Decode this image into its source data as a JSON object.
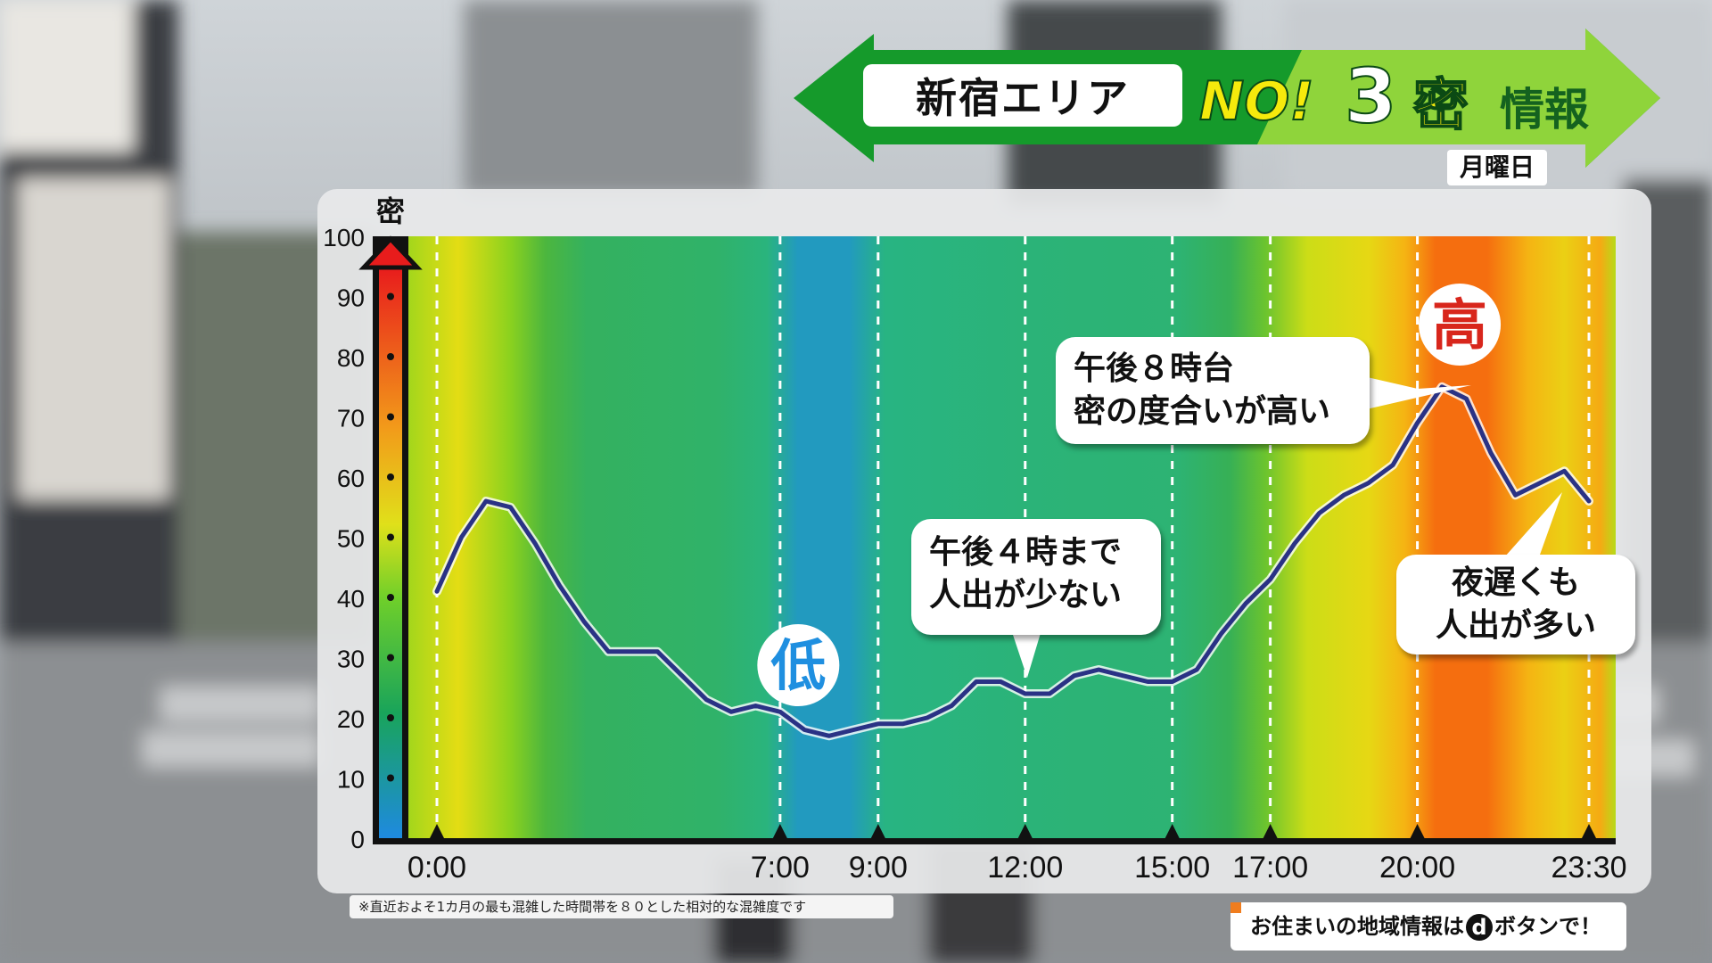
{
  "header": {
    "area": "新宿エリア",
    "brand_no": "NO!",
    "brand_three": "3",
    "brand_mitsu": "密",
    "brand_joho": "情報",
    "weekday": "月曜日"
  },
  "colors": {
    "banner_green": "#159a2b",
    "banner_light": "#8fd43b",
    "line": "#2a3285",
    "high_label": "#d8261c",
    "low_label": "#1f8fe0"
  },
  "chart_data": {
    "type": "line",
    "ylabel": "密",
    "ylim": [
      0,
      100
    ],
    "yticks": [
      "0",
      "10",
      "20",
      "30",
      "40",
      "50",
      "60",
      "70",
      "80",
      "90",
      "100"
    ],
    "xlim": [
      0,
      23.5
    ],
    "xtick_labels": [
      {
        "x": 0,
        "label": "0:00"
      },
      {
        "x": 7,
        "label": "7:00"
      },
      {
        "x": 9,
        "label": "9:00"
      },
      {
        "x": 12,
        "label": "12:00"
      },
      {
        "x": 15,
        "label": "15:00"
      },
      {
        "x": 17,
        "label": "17:00"
      },
      {
        "x": 20,
        "label": "20:00"
      },
      {
        "x": 23.5,
        "label": "23:30"
      }
    ],
    "x": [
      0,
      0.5,
      1,
      1.5,
      2,
      2.5,
      3,
      3.5,
      4,
      4.5,
      5,
      5.5,
      6,
      6.5,
      7,
      7.5,
      8,
      8.5,
      9,
      9.5,
      10,
      10.5,
      11,
      11.5,
      12,
      12.5,
      13,
      13.5,
      14,
      14.5,
      15,
      15.5,
      16,
      16.5,
      17,
      17.5,
      18,
      18.5,
      19,
      19.5,
      20,
      20.5,
      21,
      21.5,
      22,
      22.5,
      23,
      23.5
    ],
    "values": [
      41,
      50,
      56,
      55,
      49,
      42,
      36,
      31,
      31,
      31,
      27,
      23,
      21,
      22,
      21,
      18,
      17,
      18,
      19,
      19,
      20,
      22,
      26,
      26,
      24,
      24,
      27,
      28,
      27,
      26,
      26,
      28,
      34,
      39,
      43,
      49,
      54,
      57,
      59,
      62,
      69,
      75,
      73,
      64,
      57,
      59,
      61,
      56
    ],
    "density_bands": [
      {
        "x": 0,
        "v": 48
      },
      {
        "x": 1,
        "v": 55
      },
      {
        "x": 2,
        "v": 46
      },
      {
        "x": 2.7,
        "v": 38
      },
      {
        "x": 3.5,
        "v": 31
      },
      {
        "x": 6,
        "v": 29
      },
      {
        "x": 7,
        "v": 25
      },
      {
        "x": 7.6,
        "v": 15
      },
      {
        "x": 8.6,
        "v": 15
      },
      {
        "x": 9.3,
        "v": 24
      },
      {
        "x": 12,
        "v": 26
      },
      {
        "x": 15,
        "v": 27
      },
      {
        "x": 16,
        "v": 33
      },
      {
        "x": 16.7,
        "v": 42
      },
      {
        "x": 17.5,
        "v": 52
      },
      {
        "x": 18.7,
        "v": 56
      },
      {
        "x": 19.4,
        "v": 63
      },
      {
        "x": 20,
        "v": 70
      },
      {
        "x": 21,
        "v": 72
      },
      {
        "x": 21.8,
        "v": 63
      },
      {
        "x": 22.5,
        "v": 58
      },
      {
        "x": 23.2,
        "v": 64
      },
      {
        "x": 23.5,
        "v": 50
      }
    ],
    "annotations": {
      "high": {
        "text": "高",
        "x": 20.5
      },
      "low": {
        "text": "低",
        "x": 8.1
      },
      "callout_20": {
        "line1": "午後８時台",
        "line2": "密の度合いが高い"
      },
      "callout_16": {
        "line1": "午後４時まで",
        "line2": "人出が少ない"
      },
      "callout_late": {
        "line1": "夜遅くも",
        "line2": "人出が多い"
      }
    }
  },
  "footer": {
    "note": "※直近およそ1カ月の最も混雑した時間帯を８０とした相対的な混雑度です",
    "dbutton_text": "お住まいの地域情報は",
    "dbutton_d": "d",
    "dbutton_suffix": "ボタンで！"
  }
}
